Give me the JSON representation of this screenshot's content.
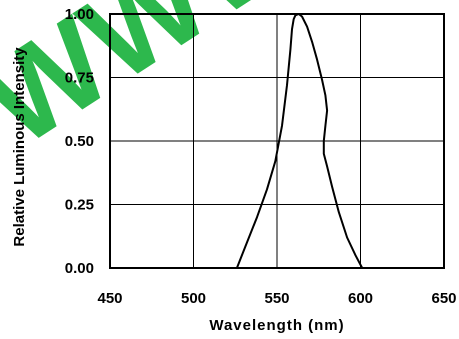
{
  "chart_data": {
    "type": "line",
    "title": "",
    "xlabel": "Wavelength (nm)",
    "ylabel": "Relative Luminous Intensity",
    "xlim": [
      450,
      650
    ],
    "ylim": [
      0,
      1
    ],
    "x_ticks": [
      "450",
      "500",
      "550",
      "600",
      "650"
    ],
    "y_ticks": [
      "0.00",
      "0.25",
      "0.50",
      "0.75",
      "1.00"
    ],
    "grid": true,
    "legend": "none",
    "series": [
      {
        "x": [
          526,
          532,
          538,
          544,
          549,
          553,
          556,
          558,
          559,
          560,
          561,
          563,
          565,
          568,
          571,
          574,
          577,
          579,
          580,
          579,
          578,
          578,
          580,
          583,
          587,
          592,
          597,
          601
        ],
        "y": [
          0.0,
          0.1,
          0.2,
          0.31,
          0.42,
          0.56,
          0.72,
          0.86,
          0.94,
          0.98,
          0.995,
          1.0,
          0.99,
          0.95,
          0.89,
          0.82,
          0.74,
          0.68,
          0.62,
          0.56,
          0.5,
          0.45,
          0.4,
          0.32,
          0.22,
          0.12,
          0.05,
          0.0
        ],
        "color": "#000000"
      }
    ]
  },
  "watermark": {
    "text": "WWW",
    "color": "#2db84d"
  }
}
